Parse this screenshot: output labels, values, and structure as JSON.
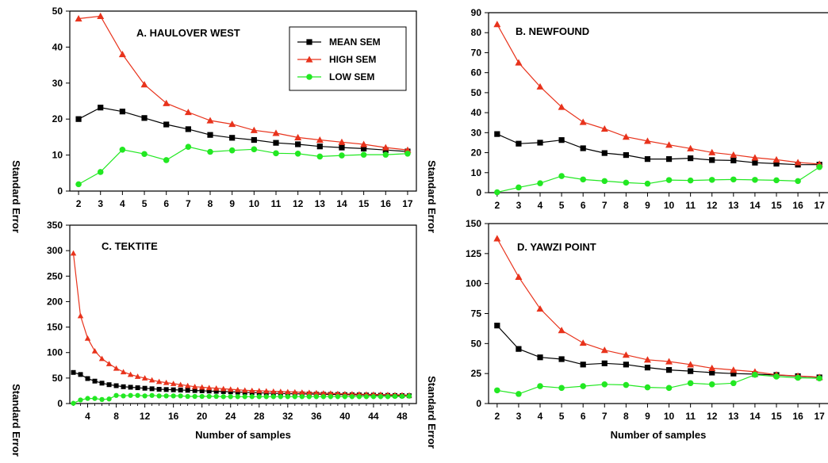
{
  "figure": {
    "ylabel": "Standard Error",
    "xlabel": "Number of samples"
  },
  "legend": [
    {
      "name": "MEAN SEM",
      "color": "#000000",
      "marker": "square"
    },
    {
      "name": "HIGH SEM",
      "color": "#e8331c",
      "marker": "triangle"
    },
    {
      "name": "LOW SEM",
      "color": "#22e822",
      "marker": "circle"
    }
  ],
  "chart_data": [
    {
      "id": "A",
      "type": "line",
      "title": "A. HAULOVER WEST",
      "ylabel": "Standard Error",
      "xlabel": "",
      "x": [
        2,
        3,
        4,
        5,
        6,
        7,
        8,
        9,
        10,
        11,
        12,
        13,
        14,
        15,
        16,
        17
      ],
      "xticks": [
        2,
        3,
        4,
        5,
        6,
        7,
        8,
        9,
        10,
        11,
        12,
        13,
        14,
        15,
        16,
        17
      ],
      "xlim": [
        1.6,
        17.4
      ],
      "ylim": [
        0,
        50
      ],
      "yticks": [
        0,
        10,
        20,
        30,
        40,
        50
      ],
      "legend": "top-right",
      "series": [
        {
          "name": "MEAN SEM",
          "values": [
            20.0,
            23.2,
            22.1,
            20.3,
            18.5,
            17.2,
            15.6,
            14.8,
            14.2,
            13.4,
            13.0,
            12.4,
            12.1,
            11.8,
            11.4,
            11.0
          ]
        },
        {
          "name": "HIGH SEM",
          "values": [
            47.9,
            48.6,
            38.0,
            29.6,
            24.4,
            21.9,
            19.6,
            18.6,
            16.9,
            16.1,
            14.9,
            14.2,
            13.6,
            13.0,
            12.1,
            11.4
          ]
        },
        {
          "name": "LOW SEM",
          "values": [
            1.9,
            5.3,
            11.5,
            10.3,
            8.6,
            12.3,
            10.9,
            11.3,
            11.6,
            10.5,
            10.4,
            9.6,
            9.9,
            10.1,
            10.1,
            10.4
          ]
        }
      ]
    },
    {
      "id": "B",
      "type": "line",
      "title": "B. NEWFOUND",
      "ylabel": "Standard Error",
      "xlabel": "",
      "x": [
        2,
        3,
        4,
        5,
        6,
        7,
        8,
        9,
        10,
        11,
        12,
        13,
        14,
        15,
        16,
        17
      ],
      "xticks": [
        2,
        3,
        4,
        5,
        6,
        7,
        8,
        9,
        10,
        11,
        12,
        13,
        14,
        15,
        16,
        17
      ],
      "xlim": [
        1.6,
        17.4
      ],
      "ylim": [
        0,
        90
      ],
      "yticks": [
        0,
        10,
        20,
        30,
        40,
        50,
        60,
        70,
        80,
        90
      ],
      "series": [
        {
          "name": "MEAN SEM",
          "values": [
            29.3,
            24.5,
            25.0,
            26.3,
            22.2,
            19.8,
            18.8,
            16.8,
            16.8,
            17.2,
            16.3,
            16.1,
            15.0,
            14.5,
            14.0,
            14.0
          ]
        },
        {
          "name": "HIGH SEM",
          "values": [
            84.2,
            65.0,
            53.0,
            42.8,
            35.3,
            31.9,
            27.9,
            25.8,
            23.9,
            22.1,
            20.1,
            18.9,
            17.5,
            16.5,
            15.1,
            14.3
          ]
        },
        {
          "name": "LOW SEM",
          "values": [
            0.2,
            2.6,
            4.7,
            8.3,
            6.6,
            5.8,
            5.0,
            4.5,
            6.3,
            6.1,
            6.4,
            6.6,
            6.4,
            6.2,
            5.8,
            12.8
          ]
        }
      ]
    },
    {
      "id": "C",
      "type": "line",
      "title": "C. TEKTITE",
      "ylabel": "Standard Error",
      "xlabel": "Number of samples",
      "x": [
        2,
        3,
        4,
        5,
        6,
        7,
        8,
        9,
        10,
        11,
        12,
        13,
        14,
        15,
        16,
        17,
        18,
        19,
        20,
        21,
        22,
        23,
        24,
        25,
        26,
        27,
        28,
        29,
        30,
        31,
        32,
        33,
        34,
        35,
        36,
        37,
        38,
        39,
        40,
        41,
        42,
        43,
        44,
        45,
        46,
        47,
        48,
        49
      ],
      "xticks": [
        4,
        8,
        12,
        16,
        20,
        24,
        28,
        32,
        36,
        40,
        44,
        48
      ],
      "xlim": [
        1.5,
        50
      ],
      "ylim": [
        0,
        350
      ],
      "yticks": [
        0,
        50,
        100,
        150,
        200,
        250,
        300,
        350
      ],
      "series": [
        {
          "name": "MEAN SEM",
          "values": [
            61,
            57,
            49,
            44,
            40,
            37,
            35,
            33,
            32,
            31,
            30,
            29,
            28,
            27.5,
            27,
            26.5,
            26,
            25.5,
            25,
            24.5,
            24,
            23.5,
            23,
            22.5,
            22,
            21.5,
            21,
            20.5,
            20,
            19.8,
            19.5,
            19.2,
            19,
            18.8,
            18.5,
            18.2,
            18,
            17.8,
            17.5,
            17.2,
            17,
            16.8,
            16.5,
            16.3,
            16,
            15.8,
            15.5,
            15.3
          ]
        },
        {
          "name": "HIGH SEM",
          "values": [
            295,
            172,
            128,
            103,
            88,
            78,
            69,
            62,
            57,
            53,
            50,
            46,
            43,
            41,
            39,
            37,
            35,
            33,
            32,
            31,
            30,
            29,
            28,
            27,
            26,
            25.5,
            25,
            24.5,
            24,
            23.5,
            23,
            22.5,
            22,
            21.5,
            21,
            20.5,
            20,
            19.5,
            19,
            18.8,
            18.5,
            18.2,
            18,
            17.8,
            17.5,
            17.2,
            17,
            16.5
          ]
        },
        {
          "name": "LOW SEM",
          "values": [
            0.5,
            7,
            10,
            10,
            8,
            9,
            16,
            15,
            16,
            16,
            15,
            16,
            15,
            15,
            15,
            15,
            14,
            14,
            14,
            14,
            14,
            13.5,
            13.5,
            13.5,
            13.5,
            13.5,
            13.5,
            13.5,
            13.5,
            13.5,
            13.5,
            13.5,
            13.5,
            13.5,
            13.5,
            13.5,
            13.5,
            13.5,
            13.5,
            13.5,
            13.5,
            13.5,
            13.5,
            13.5,
            13.5,
            14,
            14,
            14.5
          ]
        }
      ]
    },
    {
      "id": "D",
      "type": "line",
      "title": "D. YAWZI POINT",
      "ylabel": "Standard Error",
      "xlabel": "Number of samples",
      "x": [
        2,
        3,
        4,
        5,
        6,
        7,
        8,
        9,
        10,
        11,
        12,
        13,
        14,
        15,
        16,
        17
      ],
      "xticks": [
        2,
        3,
        4,
        5,
        6,
        7,
        8,
        9,
        10,
        11,
        12,
        13,
        14,
        15,
        16,
        17
      ],
      "xlim": [
        1.6,
        17.4
      ],
      "ylim": [
        0,
        150
      ],
      "yticks": [
        0,
        25,
        50,
        75,
        100,
        125,
        150
      ],
      "series": [
        {
          "name": "MEAN SEM",
          "values": [
            65,
            45.5,
            38.5,
            37,
            32.5,
            33.5,
            32.5,
            30,
            28,
            27,
            25.8,
            25,
            24.5,
            23.8,
            22.8,
            21.8
          ]
        },
        {
          "name": "HIGH SEM",
          "values": [
            137.5,
            105.5,
            79,
            61,
            50.5,
            44.5,
            40.5,
            36.5,
            35,
            32.5,
            29.5,
            28,
            26.5,
            24,
            23,
            22
          ]
        },
        {
          "name": "LOW SEM",
          "values": [
            11,
            8,
            14.5,
            13,
            14.5,
            16,
            15.5,
            13.5,
            13,
            17,
            16,
            17,
            24,
            22.5,
            21.5,
            21
          ]
        }
      ]
    }
  ]
}
